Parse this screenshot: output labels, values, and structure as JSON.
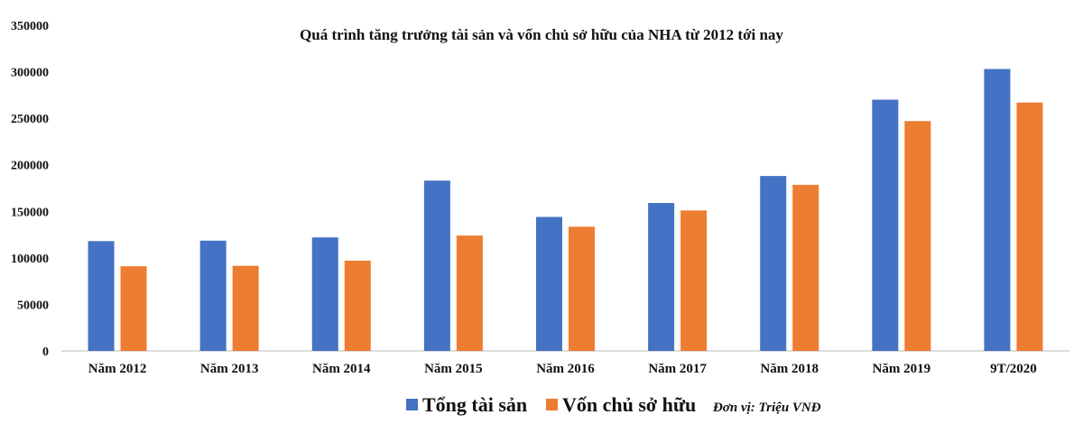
{
  "chart_data": {
    "type": "bar",
    "title": "Quá trình tăng trưởng tài sản và vốn chủ sở hữu của NHA từ 2012 tới nay",
    "categories": [
      "Năm 2012",
      "Năm 2013",
      "Năm 2014",
      "Năm 2015",
      "Năm 2016",
      "Năm 2017",
      "Năm 2018",
      "Năm 2019",
      "9T/2020"
    ],
    "series": [
      {
        "name": "Tổng tài sản",
        "color": "#4472c4",
        "values": [
          118000,
          118500,
          122000,
          183000,
          144000,
          159000,
          188000,
          270000,
          303000
        ]
      },
      {
        "name": "Vốn chủ sở hữu",
        "color": "#ed7d31",
        "values": [
          91000,
          91500,
          97000,
          124000,
          133500,
          151000,
          178500,
          247000,
          267000
        ]
      }
    ],
    "ylim": [
      0,
      350000
    ],
    "yticks": [
      0,
      50000,
      100000,
      150000,
      200000,
      250000,
      300000,
      350000
    ],
    "xlabel": "",
    "ylabel": "",
    "grid": false,
    "legend_position": "bottom",
    "unit_note": "Đơn vị: Triệu VNĐ"
  }
}
